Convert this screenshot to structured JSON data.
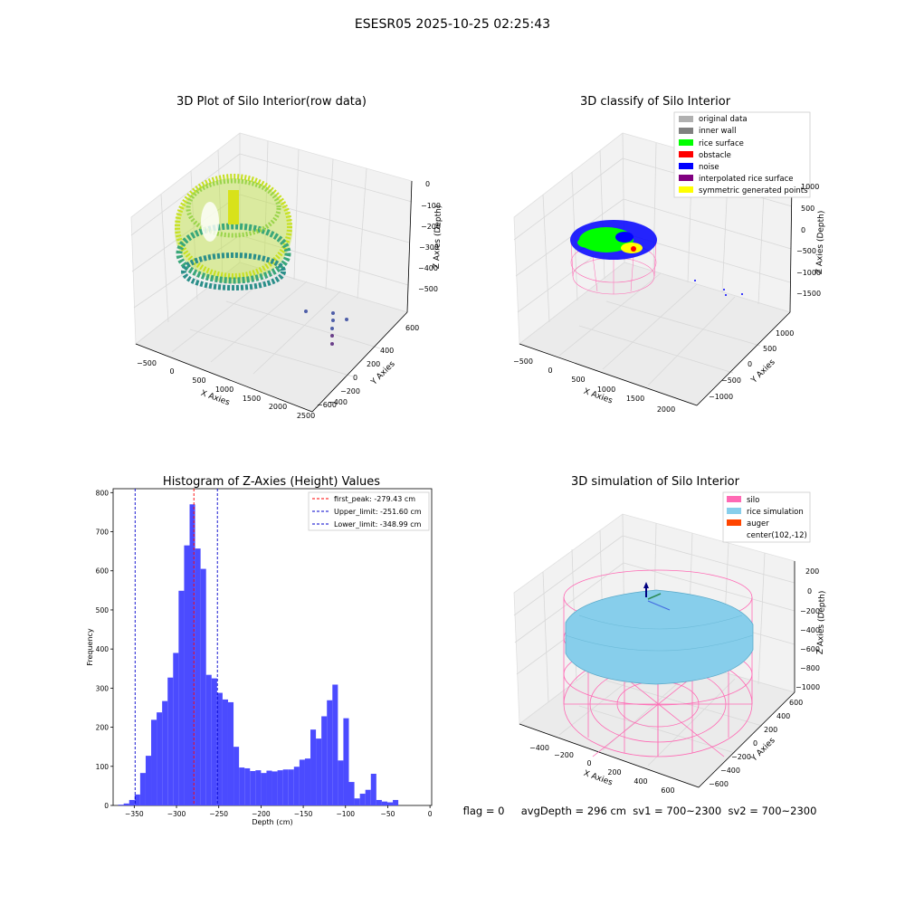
{
  "figure_title": "ESESR05 2025-10-25 02:25:43",
  "colors": {
    "histogram_bar": "#4b4bff",
    "first_peak_line": "#ff0000",
    "limit_line": "#0000cc",
    "silo": "#ff69b4",
    "rice_simulation": "#87ceeb",
    "auger": "#ff4500",
    "original_data": "#b0b0b0",
    "inner_wall": "#808080",
    "rice_surface": "#00ff00",
    "obstacle": "#ff0000",
    "noise": "#0000ff",
    "interpolated_rice_surface": "#800080",
    "symmetric_generated_points": "#ffff00"
  },
  "panels": {
    "raw": {
      "title": "3D Plot of Silo Interior(row data)",
      "x_label": "X Axies",
      "y_label": "Y Axies",
      "z_label": "Z Axies (Depth)",
      "x_ticks": [
        "−500",
        "0",
        "500",
        "1000",
        "1500",
        "2000",
        "2500"
      ],
      "y_ticks": [
        "600",
        "400",
        "200",
        "0",
        "−200",
        "−400",
        "−600"
      ],
      "z_ticks": [
        "0",
        "−100",
        "−200",
        "−300",
        "−400",
        "−500"
      ]
    },
    "classify": {
      "title": "3D classify of Silo Interior",
      "x_label": "X Axies",
      "y_label": "Y Axies",
      "z_label": "Z Axies (Depth)",
      "x_ticks": [
        "−500",
        "0",
        "500",
        "1000",
        "1500",
        "2000"
      ],
      "y_ticks": [
        "1000",
        "500",
        "0",
        "−500",
        "−1000"
      ],
      "z_ticks": [
        "1000",
        "500",
        "0",
        "−500",
        "−1000",
        "−1500"
      ],
      "legend": [
        {
          "label": "original data",
          "color": "#b0b0b0"
        },
        {
          "label": "inner wall",
          "color": "#808080"
        },
        {
          "label": "rice surface",
          "color": "#00ff00"
        },
        {
          "label": "obstacle",
          "color": "#ff0000"
        },
        {
          "label": "noise",
          "color": "#0000ff"
        },
        {
          "label": "interpolated rice surface",
          "color": "#800080"
        },
        {
          "label": "symmetric generated points",
          "color": "#ffff00"
        }
      ]
    },
    "simulation": {
      "title": "3D simulation of Silo Interior",
      "x_label": "X Axies",
      "y_label": "Y Axies",
      "z_label": "Z Axies (Depth)",
      "x_ticks": [
        "−400",
        "−200",
        "0",
        "200",
        "400",
        "600"
      ],
      "y_ticks": [
        "600",
        "400",
        "200",
        "0",
        "−200",
        "−400",
        "−600"
      ],
      "z_ticks": [
        "200",
        "0",
        "−200",
        "−400",
        "−600",
        "−800",
        "−1000"
      ],
      "legend": [
        {
          "label": "silo",
          "color": "#ff69b4"
        },
        {
          "label": "rice simulation",
          "color": "#87ceeb"
        },
        {
          "label": "auger",
          "color": "#ff4500"
        },
        {
          "label": "center(102,-12)",
          "color": ""
        }
      ]
    }
  },
  "status_line": "flag = 0     avgDepth = 296 cm  sv1 = 700~2300  sv2 = 700~2300",
  "chart_data": [
    {
      "type": "bar",
      "title": "Histogram of Z-Axies (Height) Values",
      "xlabel": "Depth (cm)",
      "ylabel": "Frequency",
      "xlim": [
        -375,
        2
      ],
      "ylim": [
        0,
        810
      ],
      "x_ticks": [
        -350,
        -300,
        -250,
        -200,
        -150,
        -100,
        -50,
        0
      ],
      "y_ticks": [
        0,
        100,
        200,
        300,
        400,
        500,
        600,
        700,
        800
      ],
      "bin_width": 6.5,
      "bin_start": -369,
      "values": [
        2,
        5,
        14,
        28,
        83,
        127,
        219,
        238,
        267,
        327,
        390,
        549,
        665,
        770,
        657,
        605,
        334,
        325,
        288,
        271,
        264,
        150,
        97,
        95,
        88,
        90,
        83,
        89,
        87,
        90,
        92,
        92,
        99,
        117,
        120,
        194,
        171,
        228,
        269,
        309,
        115,
        223,
        60,
        18,
        30,
        40,
        81,
        14,
        10,
        8,
        14
      ],
      "lines": [
        {
          "label": "first_peak: -279.43 cm",
          "x": -279.43,
          "color": "#ff0000"
        },
        {
          "label": "Upper_limit: -251.60 cm",
          "x": -251.6,
          "color": "#0000cc"
        },
        {
          "label": "Lower_limit: -348.99 cm",
          "x": -348.99,
          "color": "#0000cc"
        }
      ],
      "legend_position": "top-right",
      "grid": false
    }
  ]
}
